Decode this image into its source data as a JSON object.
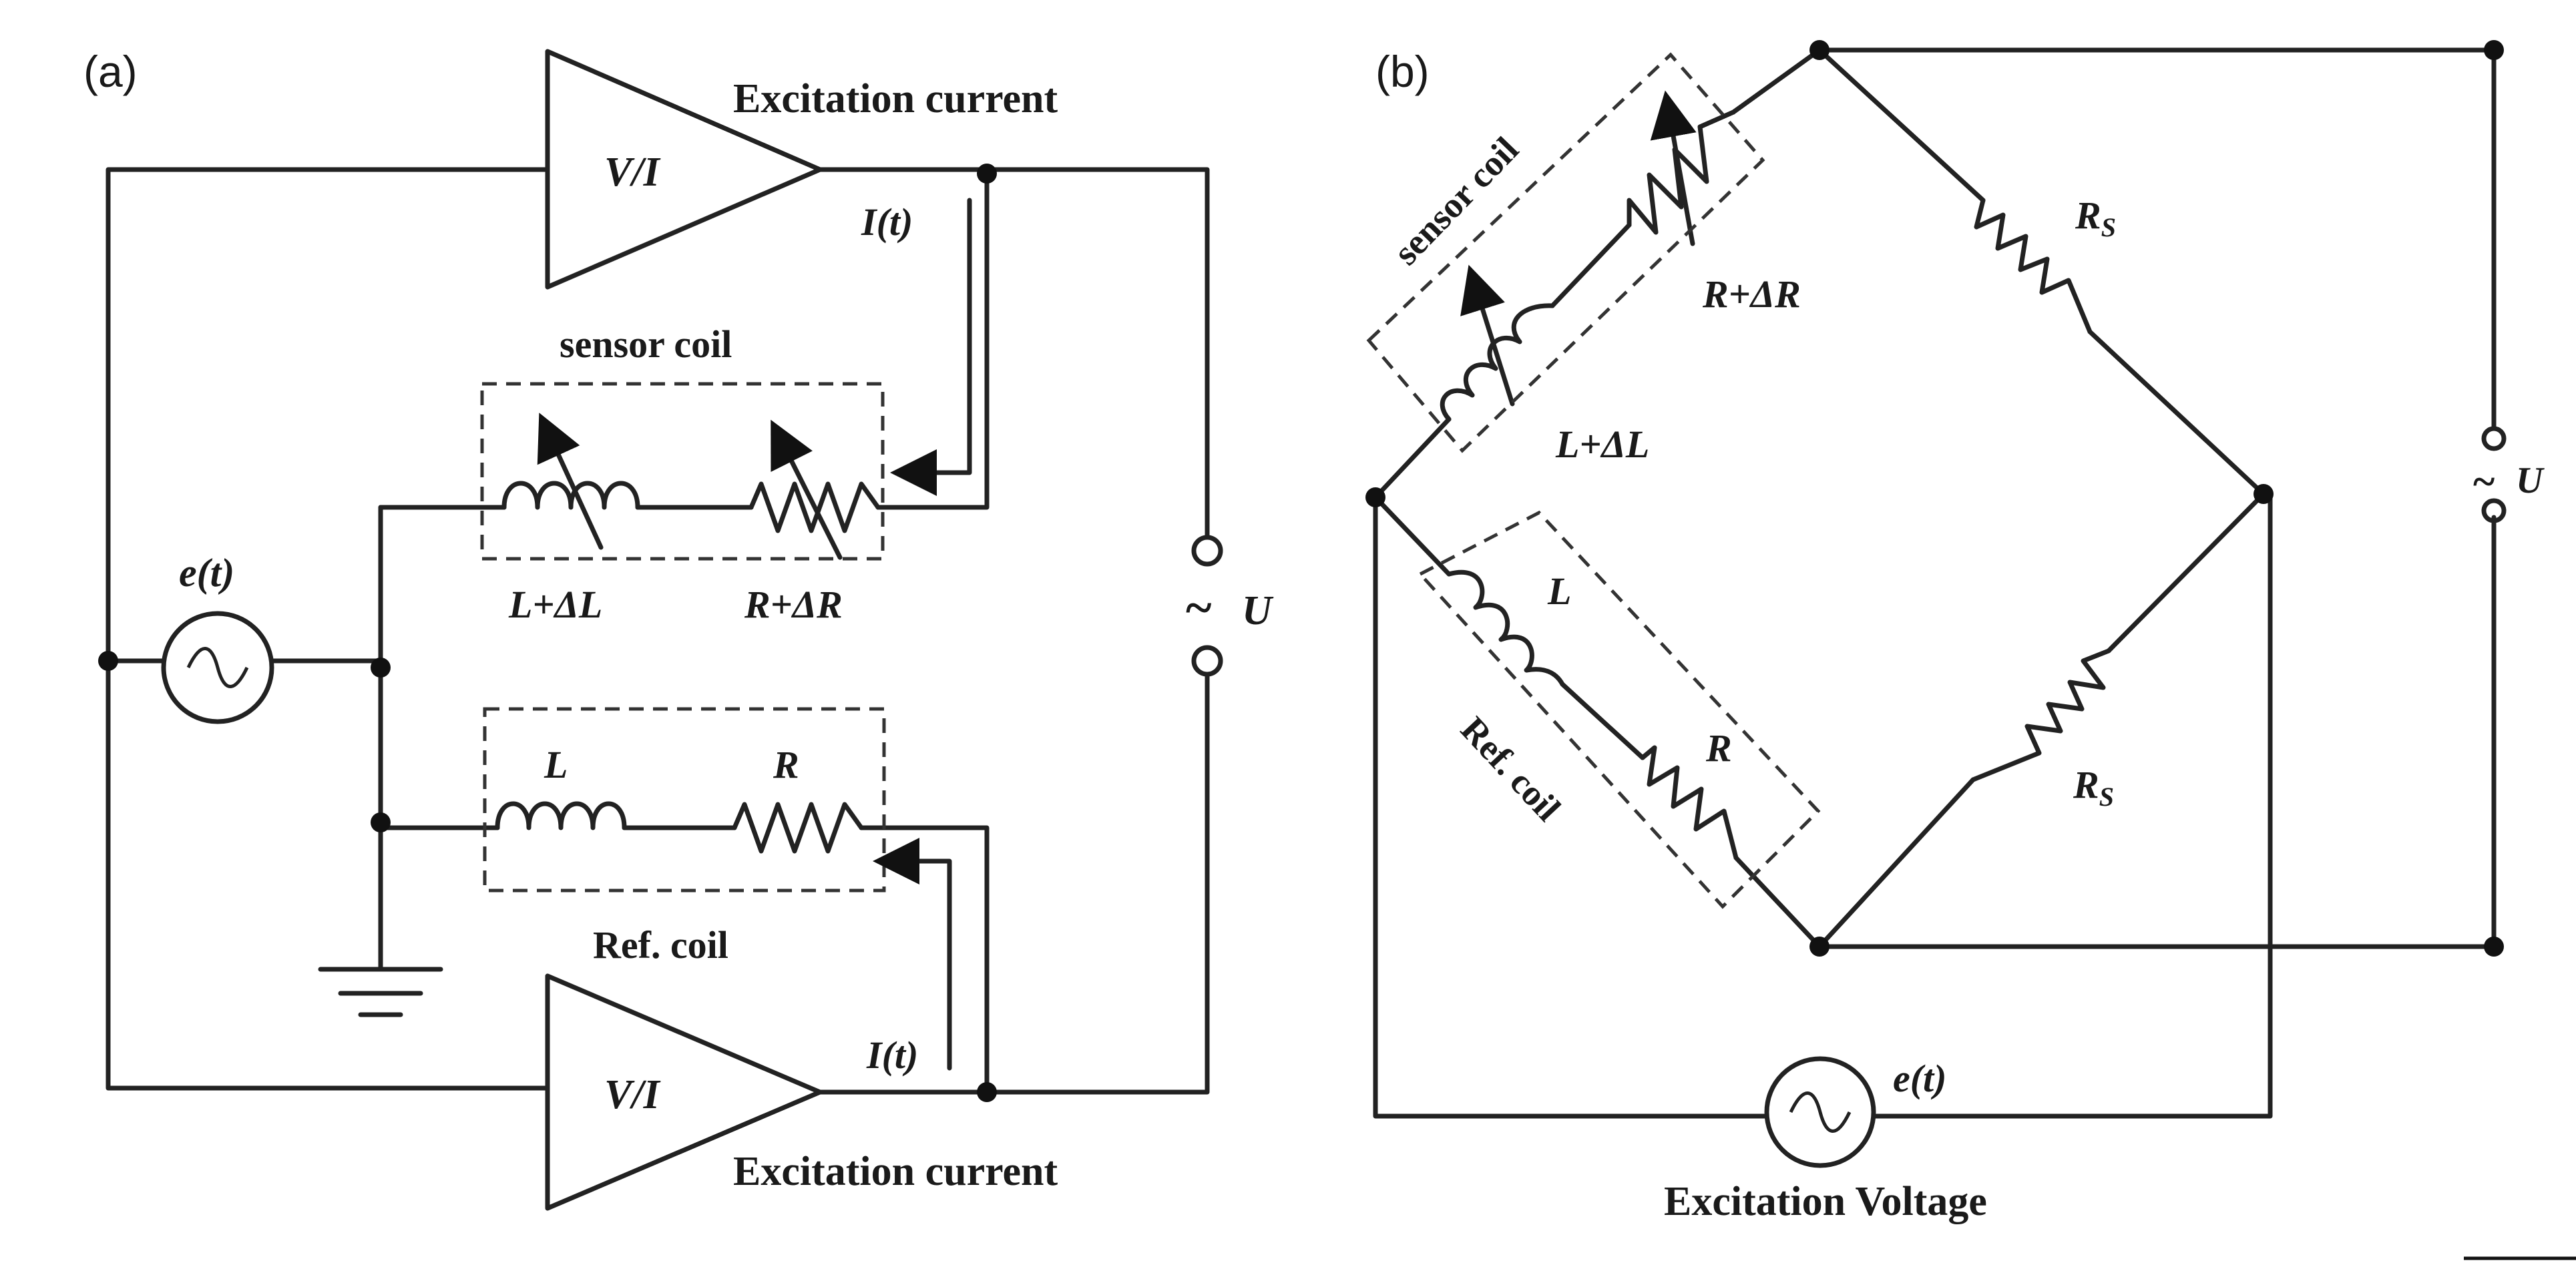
{
  "panel_a": {
    "panel_label": "(a)",
    "amp_top_label": "V/I",
    "amp_bottom_label": "V/I",
    "excitation_top": "Excitation current",
    "excitation_bottom": "Excitation current",
    "current_top": "I(t)",
    "current_bottom": "I(t)",
    "sensor_coil": "sensor coil",
    "ref_coil": "Ref. coil",
    "source": "e(t)",
    "sensor_inductor": "L+ΔL",
    "sensor_resistor": "R+ΔR",
    "ref_inductor": "L",
    "ref_resistor": "R",
    "output_tilde": "~",
    "output": "U"
  },
  "panel_b": {
    "panel_label": "(b)",
    "sensor_coil": "sensor coil",
    "ref_coil": "Ref. coil",
    "sensor_resistor": "R+ΔR",
    "sensor_inductor": "L+ΔL",
    "ref_inductor": "L",
    "ref_resistor": "R",
    "rs_top_main": "R",
    "rs_top_sub": "S",
    "rs_bottom_main": "R",
    "rs_bottom_sub": "S",
    "output_tilde": "~",
    "output": "U",
    "source": "e(t)",
    "excitation": "Excitation Voltage"
  }
}
